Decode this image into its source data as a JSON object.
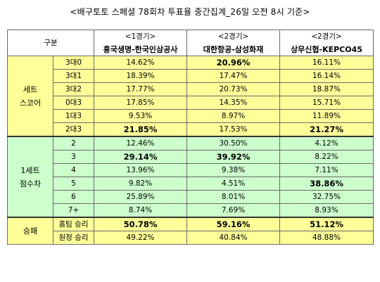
{
  "title": "<배구토토 스페셜 78회차 투표율 중간집계_26일 오전 8시 기준>",
  "header": {
    "gubun": "구분",
    "games": [
      {
        "game": "<1경기>",
        "teams": "흥국생명-한국인삼공사"
      },
      {
        "game": "<2경기>",
        "teams": "대한항공-삼성화재"
      },
      {
        "game": "<2경기>",
        "teams": "상무신협-KEPCO45"
      }
    ]
  },
  "sections": [
    {
      "category": [
        "세트",
        "스코어"
      ],
      "color": "#ffff99",
      "rows": [
        {
          "label": "3대0",
          "values": [
            "14.62%",
            "20.96%",
            "16.11%"
          ],
          "bold": [
            false,
            true,
            false
          ]
        },
        {
          "label": "3대1",
          "values": [
            "18.39%",
            "17.47%",
            "16.14%"
          ],
          "bold": [
            false,
            false,
            false
          ]
        },
        {
          "label": "3대2",
          "values": [
            "17.77%",
            "20.73%",
            "18.87%"
          ],
          "bold": [
            false,
            false,
            false
          ]
        },
        {
          "label": "0대3",
          "values": [
            "17.85%",
            "14.35%",
            "15.71%"
          ],
          "bold": [
            false,
            false,
            false
          ]
        },
        {
          "label": "1대3",
          "values": [
            "9.53%",
            "8.97%",
            "11.89%"
          ],
          "bold": [
            false,
            false,
            false
          ]
        },
        {
          "label": "2대3",
          "values": [
            "21.85%",
            "17.53%",
            "21.27%"
          ],
          "bold": [
            true,
            false,
            true
          ]
        }
      ]
    },
    {
      "category": [
        "1세트",
        "점수차"
      ],
      "color": "#ccffcc",
      "rows": [
        {
          "label": "2",
          "values": [
            "12.46%",
            "30.50%",
            "4.12%"
          ],
          "bold": [
            false,
            false,
            false
          ]
        },
        {
          "label": "3",
          "values": [
            "29.14%",
            "39.92%",
            "8.22%"
          ],
          "bold": [
            true,
            true,
            false
          ]
        },
        {
          "label": "4",
          "values": [
            "13.96%",
            "9.38%",
            "7.11%"
          ],
          "bold": [
            false,
            false,
            false
          ]
        },
        {
          "label": "5",
          "values": [
            "9.82%",
            "4.51%",
            "38.86%"
          ],
          "bold": [
            false,
            false,
            true
          ]
        },
        {
          "label": "6",
          "values": [
            "25.89%",
            "8.01%",
            "32.75%"
          ],
          "bold": [
            false,
            false,
            false
          ]
        },
        {
          "label": "7+",
          "values": [
            "8.74%",
            "7.69%",
            "8.93%"
          ],
          "bold": [
            false,
            false,
            false
          ]
        }
      ]
    },
    {
      "category": [
        "승패"
      ],
      "color": "#ffff99",
      "rows": [
        {
          "label": "홈팀 승리",
          "values": [
            "50.78%",
            "59.16%",
            "51.12%"
          ],
          "bold": [
            true,
            true,
            true
          ]
        },
        {
          "label": "원정 승리",
          "values": [
            "49.22%",
            "40.84%",
            "48.88%"
          ],
          "bold": [
            false,
            false,
            false
          ]
        }
      ]
    }
  ]
}
